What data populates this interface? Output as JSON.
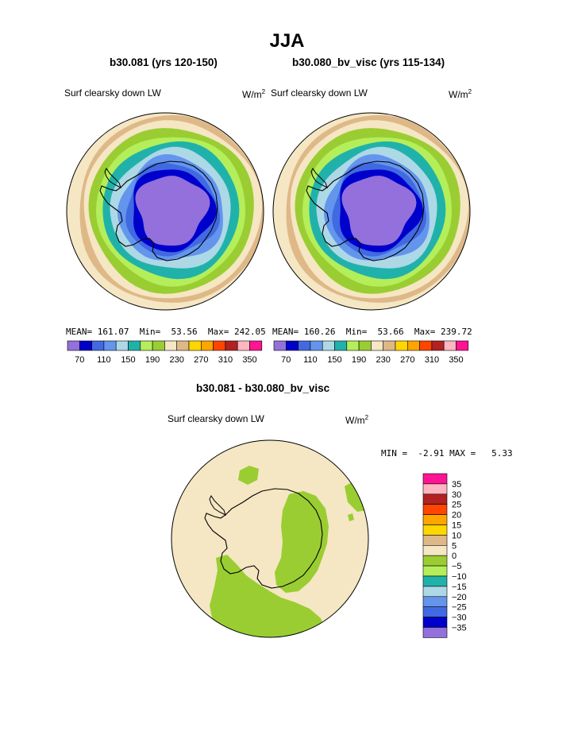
{
  "page": {
    "title": "JJA"
  },
  "panels": [
    {
      "case_title": "b30.081 (yrs 120-150)",
      "var_label": "Surf clearsky down LW",
      "units_base": "W/m",
      "units_exp": "2",
      "stats": {
        "mean_label": "MEAN=",
        "mean": "161.07",
        "min_label": "Min=",
        "min": "53.56",
        "max_label": "Max=",
        "max": "242.05"
      }
    },
    {
      "case_title": "b30.080_bv_visc (yrs 115-134)",
      "var_label": "Surf clearsky down LW",
      "units_base": "W/m",
      "units_exp": "2",
      "stats": {
        "mean_label": "MEAN=",
        "mean": "160.26",
        "min_label": "Min=",
        "min": "53.66",
        "max_label": "Max=",
        "max": "239.72"
      }
    }
  ],
  "diff_panel": {
    "case_title": "b30.081 - b30.080_bv_visc",
    "var_label": "Surf clearsky down LW",
    "units_base": "W/m",
    "units_exp": "2",
    "stats": {
      "min_label": "MIN =",
      "min": "-2.91",
      "max_label": "MAX =",
      "max": "5.33"
    }
  },
  "chart_data": [
    {
      "type": "heatmap",
      "projection": "south-polar-stereographic",
      "title": "b30.081 (yrs 120-150)",
      "variable": "Surf clearsky down LW",
      "units": "W/m^2",
      "stats": {
        "mean": 161.07,
        "min": 53.56,
        "max": 242.05
      },
      "levels": [
        70,
        90,
        110,
        130,
        150,
        170,
        190,
        210,
        230,
        250,
        270,
        290,
        310,
        330,
        350
      ],
      "colorbar_labels": [
        "70",
        "110",
        "150",
        "190",
        "230",
        "270",
        "310",
        "350"
      ],
      "colors": [
        "#9370db",
        "#0000cd",
        "#4169e1",
        "#6495ed",
        "#add8e6",
        "#20b2aa",
        "#b4ee5a",
        "#9acd32",
        "#f5e6c4",
        "#deb887",
        "#ffd700",
        "#ffa500",
        "#ff4500",
        "#b22222",
        "#ffb6c1",
        "#ff1493"
      ]
    },
    {
      "type": "heatmap",
      "projection": "south-polar-stereographic",
      "title": "b30.080_bv_visc (yrs 115-134)",
      "variable": "Surf clearsky down LW",
      "units": "W/m^2",
      "stats": {
        "mean": 160.26,
        "min": 53.66,
        "max": 239.72
      },
      "levels": [
        70,
        90,
        110,
        130,
        150,
        170,
        190,
        210,
        230,
        250,
        270,
        290,
        310,
        330,
        350
      ],
      "colorbar_labels": [
        "70",
        "110",
        "150",
        "190",
        "230",
        "270",
        "310",
        "350"
      ],
      "colors": [
        "#9370db",
        "#0000cd",
        "#4169e1",
        "#6495ed",
        "#add8e6",
        "#20b2aa",
        "#b4ee5a",
        "#9acd32",
        "#f5e6c4",
        "#deb887",
        "#ffd700",
        "#ffa500",
        "#ff4500",
        "#b22222",
        "#ffb6c1",
        "#ff1493"
      ]
    },
    {
      "type": "heatmap",
      "projection": "south-polar-stereographic",
      "title": "b30.081 - b30.080_bv_visc",
      "variable": "Surf clearsky down LW",
      "units": "W/m^2",
      "stats": {
        "min": -2.91,
        "max": 5.33
      },
      "levels": [
        -35,
        -30,
        -25,
        -20,
        -15,
        -10,
        -5,
        0,
        5,
        10,
        15,
        20,
        25,
        30,
        35
      ],
      "colorbar_labels": [
        "35",
        "30",
        "25",
        "20",
        "15",
        "10",
        "5",
        "0",
        "−5",
        "−10",
        "−15",
        "−20",
        "−25",
        "−30",
        "−35"
      ],
      "colors_top_to_bottom": [
        "#ff1493",
        "#ffb6c1",
        "#b22222",
        "#ff4500",
        "#ffa500",
        "#ffd700",
        "#deb887",
        "#f5e6c4",
        "#9acd32",
        "#b4ee5a",
        "#20b2aa",
        "#add8e6",
        "#6495ed",
        "#4169e1",
        "#0000cd",
        "#9370db"
      ]
    }
  ]
}
